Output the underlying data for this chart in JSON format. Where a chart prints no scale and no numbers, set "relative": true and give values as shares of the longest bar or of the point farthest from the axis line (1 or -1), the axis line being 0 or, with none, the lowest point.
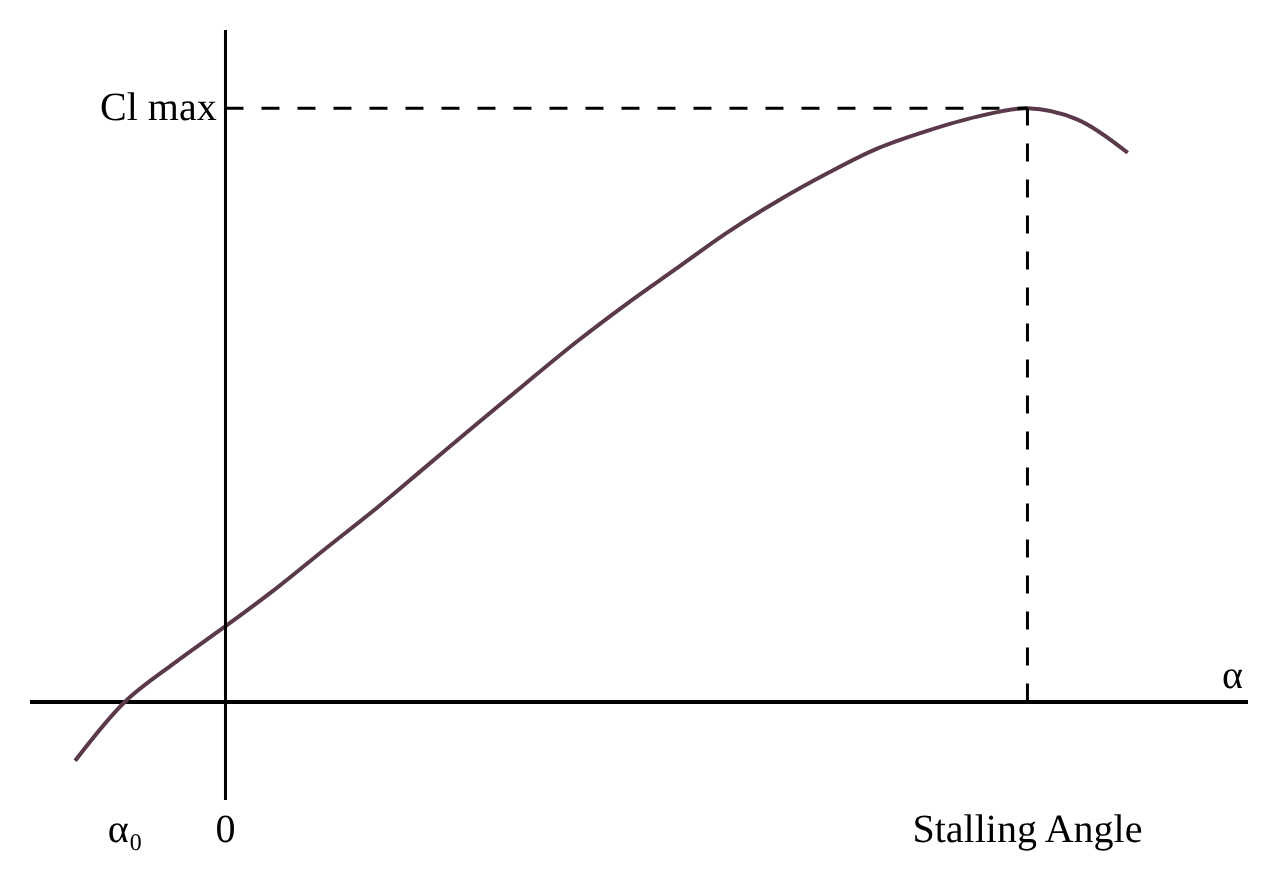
{
  "chart_data": {
    "type": "line",
    "relative": true,
    "xlabel": "α",
    "categories": [
      null,
      "α₀",
      null,
      "0",
      null,
      null,
      null,
      null,
      null,
      null,
      null,
      null,
      null,
      null,
      null,
      null,
      null,
      null,
      null,
      "Stalling Angle",
      null,
      null
    ],
    "series": [
      {
        "color": "#5a3a4a",
        "values": [
          -0.1,
          0,
          0.066,
          0.127,
          0.19,
          0.258,
          0.325,
          0.396,
          0.467,
          0.537,
          0.606,
          0.67,
          0.73,
          0.79,
          0.843,
          0.89,
          0.932,
          0.962,
          0.986,
          1,
          0.981,
          0.925
        ]
      }
    ],
    "ref_lines": [
      {
        "axis": "y",
        "value": 1,
        "label": "Cl max",
        "line_style": "dashed",
        "color": "#000000"
      },
      {
        "axis": "x",
        "value": "Stalling Angle",
        "line_style": "dashed",
        "color": "#000000"
      },
      {
        "axis": "x",
        "value": "0",
        "line_style": "solid",
        "color": "#000000"
      }
    ],
    "legend": false,
    "marker": "none",
    "line_style": "solid"
  }
}
